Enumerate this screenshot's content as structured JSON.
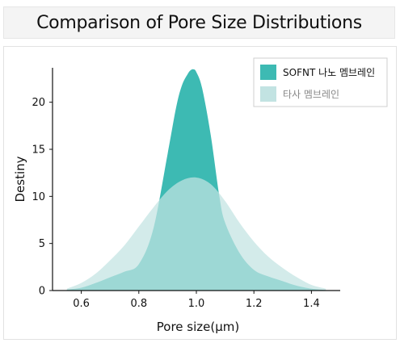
{
  "title": "Comparison of Pore Size Distributions",
  "chart_data": {
    "type": "area",
    "xlabel": "Pore size(μm)",
    "ylabel": "Destiny",
    "xlim": [
      0.5,
      1.5
    ],
    "ylim": [
      0,
      24
    ],
    "x_ticks": [
      0.6,
      0.8,
      1.0,
      1.2,
      1.4
    ],
    "y_ticks": [
      0,
      5,
      10,
      15,
      20
    ],
    "grid": false,
    "legend_position": "top-right",
    "series": [
      {
        "name": "SOFNT 나노 멤브레인",
        "color": "#3dbab3",
        "x": [
          0.55,
          0.6,
          0.65,
          0.7,
          0.75,
          0.8,
          0.85,
          0.9,
          0.93,
          0.95,
          0.97,
          0.98,
          0.99,
          1.0,
          1.02,
          1.05,
          1.08,
          1.1,
          1.15,
          1.2,
          1.25,
          1.3,
          1.35,
          1.4,
          1.45
        ],
        "y": [
          0.1,
          0.3,
          0.8,
          1.4,
          2.0,
          2.8,
          6.5,
          14.5,
          19.5,
          21.8,
          23.0,
          23.4,
          23.5,
          23.2,
          21.5,
          16.5,
          10.0,
          7.2,
          4.0,
          2.2,
          1.5,
          1.0,
          0.5,
          0.2,
          0.05
        ]
      },
      {
        "name": "타사 멤브레인",
        "color": "#c2e3e2",
        "x": [
          0.55,
          0.6,
          0.65,
          0.7,
          0.75,
          0.8,
          0.85,
          0.9,
          0.95,
          1.0,
          1.05,
          1.1,
          1.15,
          1.2,
          1.25,
          1.3,
          1.35,
          1.4,
          1.45
        ],
        "y": [
          0.2,
          0.8,
          1.8,
          3.2,
          4.8,
          6.8,
          8.8,
          10.6,
          11.7,
          12.0,
          11.3,
          9.5,
          7.2,
          5.2,
          3.6,
          2.4,
          1.4,
          0.6,
          0.2
        ]
      }
    ]
  }
}
